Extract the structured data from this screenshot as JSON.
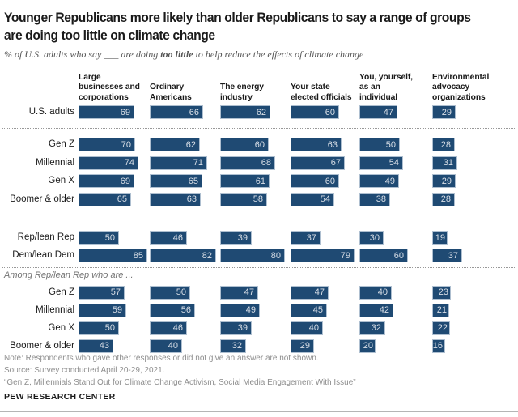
{
  "title": "Younger Republicans more likely than older Republicans to say a range of groups\nare doing too little on climate change",
  "subtitle": {
    "pre": "% of U.S. adults who say ___ are doing ",
    "emph": "too little",
    "post": " to help reduce the effects of climate change"
  },
  "chart_data": {
    "type": "bar",
    "unit": "%",
    "orientation": "horizontal",
    "xlim": [
      0,
      88
    ],
    "bar_color": "#1F4A73",
    "bar_border_color": "#AEBFD0",
    "value_text_color": "#D9DFE7",
    "columns": [
      "Large\nbusinesses and\ncorporations",
      "Ordinary\nAmericans",
      "The energy\nindustry",
      "Your state\nelected officials",
      "You, yourself,\nas an\nindividual",
      "Environmental\nadvocacy\norganizations"
    ],
    "sections": [
      {
        "rows": [
          {
            "label": "U.S. adults",
            "values": [
              69,
              66,
              62,
              60,
              47,
              29
            ]
          }
        ]
      },
      {
        "rows": [
          {
            "label": "Gen Z",
            "values": [
              70,
              62,
              60,
              63,
              50,
              28
            ]
          },
          {
            "label": "Millennial",
            "values": [
              74,
              71,
              68,
              67,
              54,
              31
            ]
          },
          {
            "label": "Gen X",
            "values": [
              69,
              65,
              61,
              60,
              49,
              29
            ]
          },
          {
            "label": "Boomer & older",
            "values": [
              65,
              63,
              58,
              54,
              38,
              28
            ]
          }
        ]
      },
      {
        "rows": [
          {
            "label": "Rep/lean Rep",
            "values": [
              50,
              46,
              39,
              37,
              30,
              19
            ]
          },
          {
            "label": "Dem/lean Dem",
            "values": [
              85,
              82,
              80,
              79,
              60,
              37
            ]
          }
        ]
      },
      {
        "heading": "Among Rep/lean Rep who are ...",
        "rows": [
          {
            "label": "Gen Z",
            "values": [
              57,
              50,
              47,
              47,
              40,
              23
            ]
          },
          {
            "label": "Millennial",
            "values": [
              59,
              56,
              49,
              45,
              42,
              21
            ]
          },
          {
            "label": "Gen X",
            "values": [
              50,
              46,
              39,
              40,
              32,
              22
            ]
          },
          {
            "label": "Boomer & older",
            "values": [
              43,
              40,
              32,
              29,
              20,
              16
            ]
          }
        ]
      }
    ]
  },
  "footer": {
    "note": "Note: Respondents who gave other responses or did not give an answer are not shown.",
    "source": "Source: Survey conducted April 20-29, 2021.",
    "quote": "“Gen Z, Millennials Stand Out for Climate Change Activism, Social Media Engagement With Issue”",
    "brand": "PEW RESEARCH CENTER"
  }
}
